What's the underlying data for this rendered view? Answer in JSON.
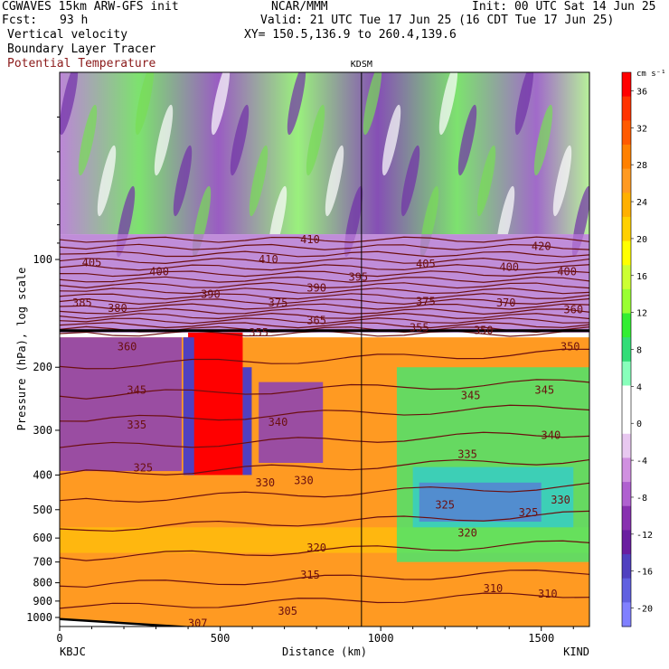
{
  "header": {
    "line1_left": "CGWAVES 15km ARW-GFS init",
    "line1_center": "NCAR/MMM",
    "line1_right": "Init: 00 UTC Sat 14 Jun 25",
    "fcst_label": "Fcst:",
    "fcst_value": "93 h",
    "valid": "Valid: 21 UTC Tue 17 Jun 25 (16 CDT Tue 17 Jun 25)",
    "field1": "Vertical velocity",
    "field2": "Boundary Layer Tracer",
    "field3": "Potential Temperature",
    "xy": "XY= 150.5,136.9 to 260.4,139.6"
  },
  "colors": {
    "field3_text": "#8b1a1a",
    "theta_contour": "#6b0f0f",
    "pbl_line": "#000000"
  },
  "chart_data": {
    "type": "heatmap",
    "title": "KDSM",
    "xlabel": "Distance (km)",
    "ylabel": "Pressure (hPa), log scale",
    "x_ticks": [
      "0",
      "500",
      "1000",
      "1500"
    ],
    "x_tick_values": [
      0,
      500,
      1000,
      1500
    ],
    "xlim": [
      0,
      1650
    ],
    "x_endpoints": {
      "left": "KBJC",
      "right": "KIND"
    },
    "y_ticks": [
      "100",
      "200",
      "300",
      "400",
      "500",
      "600",
      "700",
      "800",
      "900",
      "1000"
    ],
    "y_tick_values": [
      100,
      200,
      300,
      400,
      500,
      600,
      700,
      800,
      900,
      1000
    ],
    "ylim": [
      1060,
      30
    ],
    "y_scale": "log",
    "marker_line_x_km": 940,
    "colorbar": {
      "unit": "cm s⁻¹",
      "labels": [
        "36",
        "32",
        "28",
        "24",
        "20",
        "16",
        "12",
        "8",
        "4",
        "0",
        "-4",
        "-8",
        "-12",
        "-16",
        "-20"
      ],
      "label_values": [
        36,
        32,
        28,
        24,
        20,
        16,
        12,
        8,
        4,
        0,
        -4,
        -8,
        -12,
        -16,
        -20
      ],
      "colors": [
        "#ff0000",
        "#ff3300",
        "#ff5a00",
        "#ff8000",
        "#ff9a22",
        "#ffb000",
        "#ffd000",
        "#ffff00",
        "#ccff33",
        "#99ff33",
        "#33ee33",
        "#33dd77",
        "#88ffbb",
        "#ffffff",
        "#ffffff",
        "#e8c8f0",
        "#d090e0",
        "#b060d0",
        "#8830b0",
        "#6a1ea0",
        "#5040c0",
        "#6060e0",
        "#8080ff"
      ]
    },
    "contour_labels": [
      {
        "text": "420",
        "x": 1500,
        "p": 92
      },
      {
        "text": "410",
        "x": 780,
        "p": 88
      },
      {
        "text": "410",
        "x": 650,
        "p": 100
      },
      {
        "text": "405",
        "x": 100,
        "p": 102
      },
      {
        "text": "405",
        "x": 1140,
        "p": 103
      },
      {
        "text": "400",
        "x": 310,
        "p": 108
      },
      {
        "text": "400",
        "x": 1400,
        "p": 105
      },
      {
        "text": "400",
        "x": 1580,
        "p": 108
      },
      {
        "text": "395",
        "x": 930,
        "p": 112
      },
      {
        "text": "390",
        "x": 800,
        "p": 120
      },
      {
        "text": "390",
        "x": 470,
        "p": 125
      },
      {
        "text": "385",
        "x": 70,
        "p": 132
      },
      {
        "text": "380",
        "x": 180,
        "p": 137
      },
      {
        "text": "375",
        "x": 680,
        "p": 132
      },
      {
        "text": "375",
        "x": 1140,
        "p": 131
      },
      {
        "text": "370",
        "x": 1390,
        "p": 132
      },
      {
        "text": "365",
        "x": 800,
        "p": 148
      },
      {
        "text": "360",
        "x": 210,
        "p": 175
      },
      {
        "text": "360",
        "x": 1600,
        "p": 138
      },
      {
        "text": "355",
        "x": 620,
        "p": 160
      },
      {
        "text": "355",
        "x": 1120,
        "p": 155
      },
      {
        "text": "350",
        "x": 1320,
        "p": 158
      },
      {
        "text": "350",
        "x": 1590,
        "p": 175
      },
      {
        "text": "345",
        "x": 240,
        "p": 232
      },
      {
        "text": "345",
        "x": 1280,
        "p": 240
      },
      {
        "text": "345",
        "x": 1510,
        "p": 232
      },
      {
        "text": "340",
        "x": 680,
        "p": 285
      },
      {
        "text": "340",
        "x": 1530,
        "p": 310
      },
      {
        "text": "335",
        "x": 240,
        "p": 290
      },
      {
        "text": "335",
        "x": 1270,
        "p": 350
      },
      {
        "text": "330",
        "x": 640,
        "p": 420
      },
      {
        "text": "330",
        "x": 760,
        "p": 415
      },
      {
        "text": "330",
        "x": 1560,
        "p": 470
      },
      {
        "text": "325",
        "x": 260,
        "p": 382
      },
      {
        "text": "325",
        "x": 1200,
        "p": 485
      },
      {
        "text": "325",
        "x": 1460,
        "p": 510
      },
      {
        "text": "320",
        "x": 800,
        "p": 640
      },
      {
        "text": "320",
        "x": 1270,
        "p": 580
      },
      {
        "text": "315",
        "x": 780,
        "p": 760
      },
      {
        "text": "310",
        "x": 1350,
        "p": 830
      },
      {
        "text": "310",
        "x": 1520,
        "p": 860
      },
      {
        "text": "307",
        "x": 430,
        "p": 1040
      },
      {
        "text": "305",
        "x": 710,
        "p": 960
      }
    ]
  }
}
